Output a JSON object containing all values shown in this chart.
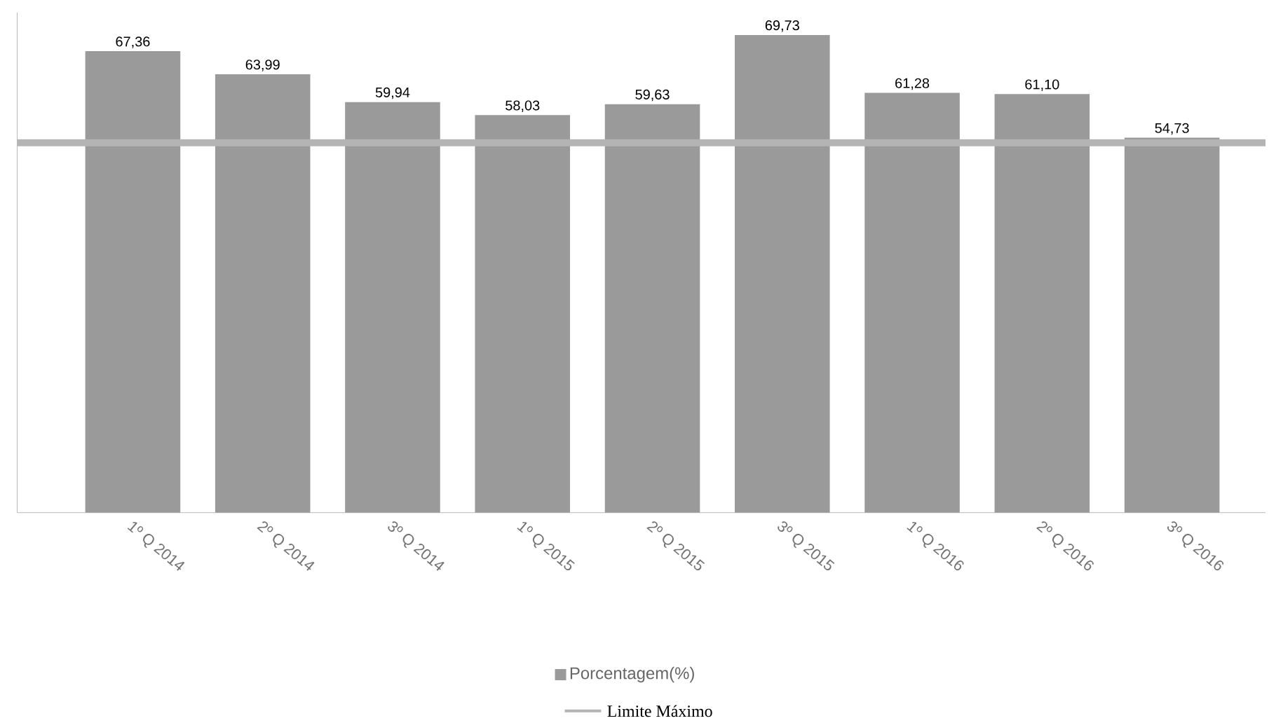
{
  "chart_data": {
    "type": "bar",
    "categories": [
      "1º Q 2014",
      "2º Q 2014",
      "3º Q 2014",
      "1º Q 2015",
      "2º Q 2015",
      "3º Q 2015",
      "1º Q 2016",
      "2º Q 2016",
      "3º Q 2016"
    ],
    "series": [
      {
        "name": "Porcentagem(%)",
        "color": "#9a9a9a",
        "values": [
          67.36,
          63.99,
          59.94,
          58.03,
          59.63,
          69.73,
          61.28,
          61.1,
          54.73
        ],
        "value_labels": [
          "67,36",
          "63,99",
          "59,94",
          "58,03",
          "59,63",
          "69,73",
          "61,28",
          "61,10",
          "54,73"
        ]
      }
    ],
    "ylim": [
      0,
      73
    ],
    "ref_lines": [
      {
        "axis": "y",
        "value": 54,
        "label": "Limite Máximo",
        "color": "#b4b4b4"
      }
    ],
    "legend": "bottom"
  }
}
